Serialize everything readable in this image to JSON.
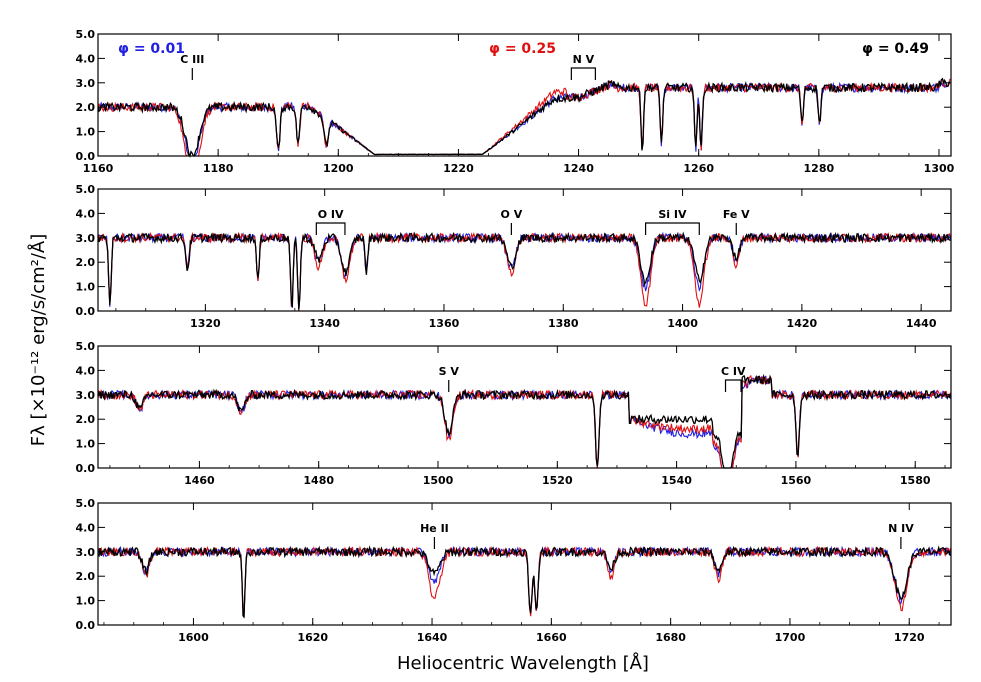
{
  "colors": {
    "phase_001": "#2020e0",
    "phase_025": "#e01010",
    "phase_049": "#000000"
  },
  "legend": {
    "phase_001": "φ = 0.01",
    "phase_025": "φ = 0.25",
    "phase_049": "φ = 0.49"
  },
  "labels": {
    "ylabel": "Fλ [×10⁻¹² erg/s/cm²/Å]",
    "xlabel": "Heliocentric Wavelength [Å]"
  },
  "chart_data": [
    {
      "type": "line",
      "xlim": [
        1160,
        1302
      ],
      "ylim": [
        0,
        5
      ],
      "xticks": [
        1160,
        1180,
        1200,
        1220,
        1240,
        1260,
        1280,
        1300
      ],
      "yticks": [
        0.0,
        1.0,
        2.0,
        3.0,
        4.0,
        5.0
      ],
      "ytick_labels": [
        "0.0",
        "1.0",
        "2.0",
        "3.0",
        "4.0",
        "5.0"
      ],
      "series": [
        {
          "name": "φ = 0.01",
          "color": "#2020e0"
        },
        {
          "name": "φ = 0.25",
          "color": "#e01010"
        },
        {
          "name": "φ = 0.49",
          "color": "#000000"
        }
      ],
      "annotations": [
        {
          "text": "C III",
          "x": [
            1175.7
          ]
        },
        {
          "text": "N V",
          "x": [
            1238.8,
            1242.8
          ]
        }
      ]
    },
    {
      "type": "line",
      "xlim": [
        1302,
        1445
      ],
      "ylim": [
        0,
        5
      ],
      "xticks": [
        1320,
        1340,
        1360,
        1380,
        1400,
        1420,
        1440
      ],
      "yticks": [
        0.0,
        1.0,
        2.0,
        3.0,
        4.0,
        5.0
      ],
      "ytick_labels": [
        "0.0",
        "1.0",
        "2.0",
        "3.0",
        "4.0",
        "5.0"
      ],
      "series": [
        {
          "name": "φ = 0.01",
          "color": "#2020e0"
        },
        {
          "name": "φ = 0.25",
          "color": "#e01010"
        },
        {
          "name": "φ = 0.49",
          "color": "#000000"
        }
      ],
      "annotations": [
        {
          "text": "O IV",
          "x": [
            1338.6,
            1343.4
          ]
        },
        {
          "text": "O V",
          "x": [
            1371.3
          ]
        },
        {
          "text": "Si IV",
          "x": [
            1393.8,
            1402.8
          ]
        },
        {
          "text": "Fe V",
          "x": [
            1409.0
          ]
        }
      ]
    },
    {
      "type": "line",
      "xlim": [
        1443,
        1586
      ],
      "ylim": [
        0,
        5
      ],
      "xticks": [
        1460,
        1480,
        1500,
        1520,
        1540,
        1560,
        1580
      ],
      "yticks": [
        0.0,
        1.0,
        2.0,
        3.0,
        4.0,
        5.0
      ],
      "ytick_labels": [
        "0.0",
        "1.0",
        "2.0",
        "3.0",
        "4.0",
        "5.0"
      ],
      "series": [
        {
          "name": "φ = 0.01",
          "color": "#2020e0"
        },
        {
          "name": "φ = 0.25",
          "color": "#e01010"
        },
        {
          "name": "φ = 0.49",
          "color": "#000000"
        }
      ],
      "annotations": [
        {
          "text": "S V",
          "x": [
            1501.8
          ]
        },
        {
          "text": "C IV",
          "x": [
            1548.2,
            1550.8
          ]
        }
      ]
    },
    {
      "type": "line",
      "xlim": [
        1584,
        1727
      ],
      "ylim": [
        0,
        5
      ],
      "xticks": [
        1600,
        1620,
        1640,
        1660,
        1680,
        1700,
        1720
      ],
      "yticks": [
        0.0,
        1.0,
        2.0,
        3.0,
        4.0,
        5.0
      ],
      "ytick_labels": [
        "0.0",
        "1.0",
        "2.0",
        "3.0",
        "4.0",
        "5.0"
      ],
      "series": [
        {
          "name": "φ = 0.01",
          "color": "#2020e0"
        },
        {
          "name": "φ = 0.25",
          "color": "#e01010"
        },
        {
          "name": "φ = 0.49",
          "color": "#000000"
        }
      ],
      "annotations": [
        {
          "text": "He II",
          "x": [
            1640.4
          ]
        },
        {
          "text": "N IV",
          "x": [
            1718.6
          ]
        }
      ]
    }
  ]
}
